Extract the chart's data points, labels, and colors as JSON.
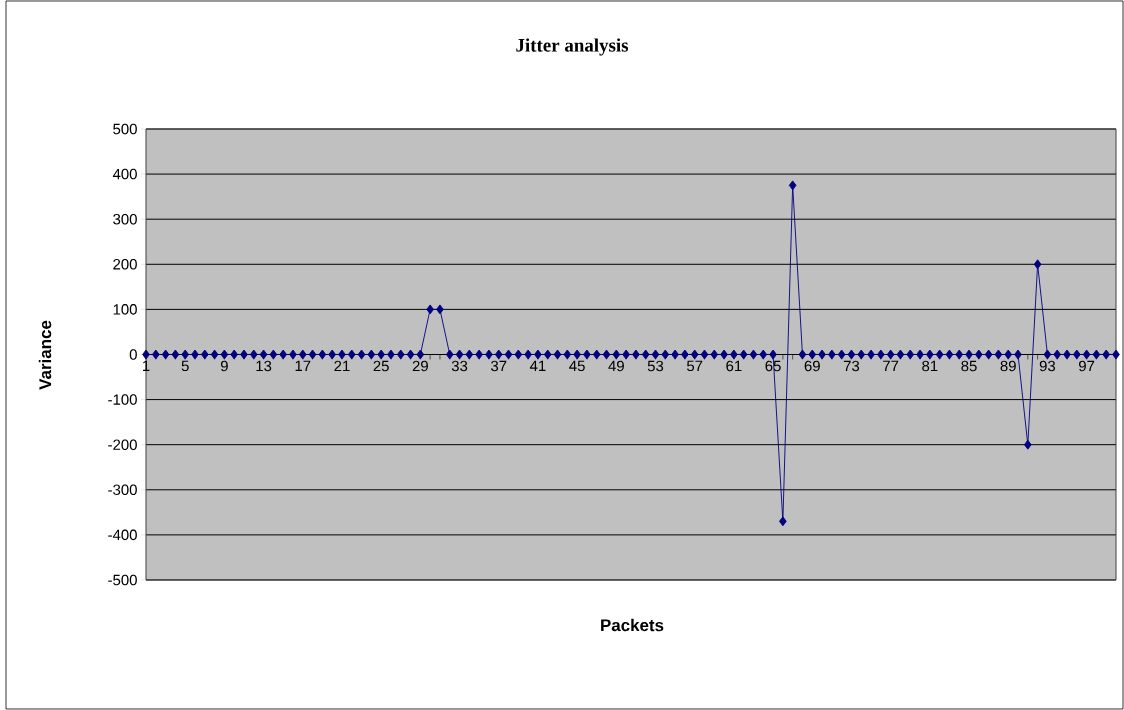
{
  "chart_data": {
    "type": "line",
    "title": "Jitter analysis",
    "xlabel": "Packets",
    "ylabel": "Variance",
    "categories": [
      "1",
      null,
      null,
      null,
      "5",
      null,
      null,
      null,
      "9",
      null,
      null,
      null,
      "13",
      null,
      null,
      null,
      "17",
      null,
      null,
      null,
      "21",
      null,
      null,
      null,
      "25",
      null,
      null,
      null,
      "29",
      null,
      null,
      null,
      "33",
      null,
      null,
      null,
      "37",
      null,
      null,
      null,
      "41",
      null,
      null,
      null,
      "45",
      null,
      null,
      null,
      "49",
      null,
      null,
      null,
      "53",
      null,
      null,
      null,
      "57",
      null,
      null,
      null,
      "61",
      null,
      null,
      null,
      "65",
      null,
      null,
      null,
      "69",
      null,
      null,
      null,
      "73",
      null,
      null,
      null,
      "77",
      null,
      null,
      null,
      "81",
      null,
      null,
      null,
      "85",
      null,
      null,
      null,
      "89",
      null,
      null,
      null,
      "93",
      null,
      null,
      null,
      "97",
      null,
      null,
      null
    ],
    "series": [
      {
        "color": "#000080",
        "values": [
          0,
          0,
          0,
          0,
          0,
          0,
          0,
          0,
          0,
          0,
          0,
          0,
          0,
          0,
          0,
          0,
          0,
          0,
          0,
          0,
          0,
          0,
          0,
          0,
          0,
          0,
          0,
          0,
          0,
          100,
          100,
          0,
          0,
          0,
          0,
          0,
          0,
          0,
          0,
          0,
          0,
          0,
          0,
          0,
          0,
          0,
          0,
          0,
          0,
          0,
          0,
          0,
          0,
          0,
          0,
          0,
          0,
          0,
          0,
          0,
          0,
          0,
          0,
          0,
          0,
          -370,
          375,
          0,
          0,
          0,
          0,
          0,
          0,
          0,
          0,
          0,
          0,
          0,
          0,
          0,
          0,
          0,
          0,
          0,
          0,
          0,
          0,
          0,
          0,
          0,
          -200,
          200,
          0,
          0,
          0,
          0,
          0,
          0,
          0,
          0
        ]
      }
    ],
    "ylim": [
      -500,
      500
    ],
    "yticks": [
      -500,
      -400,
      -300,
      -200,
      -100,
      0,
      100,
      200,
      300,
      400,
      500
    ],
    "grid": "y",
    "marker": "diamond",
    "line_style": "solid"
  }
}
